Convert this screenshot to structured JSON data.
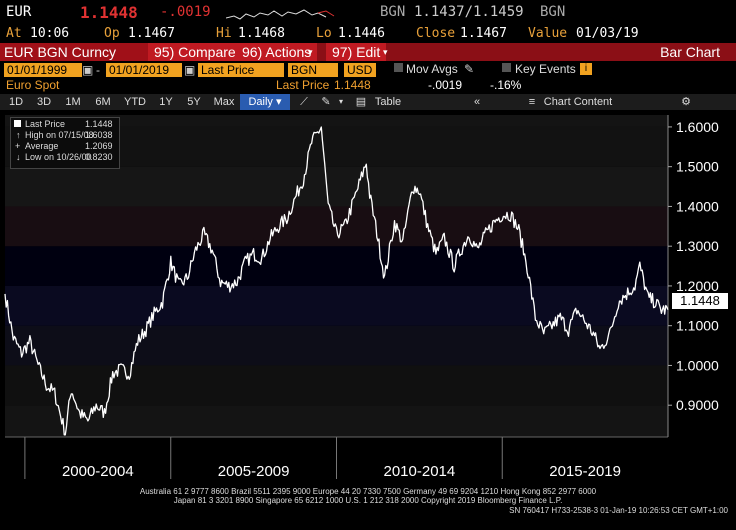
{
  "header": {
    "ticker": "EUR",
    "price": "1.1448",
    "change": "-.0019",
    "quote_ccy": "BGN",
    "bid_ask": "1.1437/1.1459",
    "quote_ccy2": "BGN",
    "at_label": "At",
    "time": "10:06",
    "op_label": "Op",
    "op": "1.1467",
    "hi_label": "Hi",
    "hi": "1.1468",
    "lo_label": "Lo",
    "lo": "1.1446",
    "close_label": "Close",
    "close": "1.1467",
    "value_label": "Value",
    "value_date": "01/03/19"
  },
  "tabs": {
    "security": "EUR BGN Curncy",
    "compare": "95) Compare",
    "actions": "96) Actions",
    "edit": "97) Edit",
    "chart_type": "Bar Chart"
  },
  "options": {
    "start_date": "01/01/1999",
    "end_date": "01/01/2019",
    "field": "Last Price",
    "currency1": "BGN",
    "currency2": "USD",
    "mov_avgs": "Mov Avgs",
    "key_events": "Key Events"
  },
  "info": {
    "name": "Euro Spot",
    "last_price_label": "Last Price",
    "last_price": "1.1448",
    "chg": "-.0019",
    "pct": "-.16%"
  },
  "buttons": [
    "1D",
    "3D",
    "1M",
    "6M",
    "YTD",
    "1Y",
    "5Y",
    "Max",
    "Daily",
    "Table",
    "Chart Content"
  ],
  "legend": {
    "series": "Last Price",
    "series_value": "1.1448",
    "high_label": "High on 07/15/08",
    "high_value": "1.6038",
    "avg_label": "Average",
    "avg_value": "1.2069",
    "low_label": "Low on 10/26/00",
    "low_value": "0.8230"
  },
  "footer": {
    "line1": "Australia 61 2 9777 8600 Brazil 5511 2395 9000 Europe 44 20 7330 7500 Germany 49 69 9204 1210 Hong Kong 852 2977 6000",
    "line2": "Japan 81 3 3201 8900        Singapore 65 6212 1000        U.S. 1 212 318 2000              Copyright 2019 Bloomberg Finance L.P.",
    "line3": "SN 760417 H733-2538-3 01-Jan-19 10:26:53 CET  GMT+1:00"
  },
  "colors": {
    "accent": "#f0a030",
    "negative": "#e03232",
    "tabbar": "#8b0f16",
    "selected": "#2a5cb0",
    "line": "#ffffff"
  },
  "chart_data": {
    "type": "line",
    "series": [
      {
        "name": "Last Price",
        "x": [
          1999.0,
          1999.25,
          1999.5,
          1999.75,
          2000.0,
          2000.25,
          2000.5,
          2000.82,
          2001.0,
          2001.25,
          2001.5,
          2001.75,
          2002.0,
          2002.25,
          2002.5,
          2002.75,
          2003.0,
          2003.25,
          2003.5,
          2003.75,
          2004.0,
          2004.25,
          2004.5,
          2004.75,
          2005.0,
          2005.25,
          2005.5,
          2005.75,
          2006.0,
          2006.25,
          2006.5,
          2006.75,
          2007.0,
          2007.25,
          2007.5,
          2007.75,
          2008.0,
          2008.25,
          2008.54,
          2008.75,
          2009.0,
          2009.25,
          2009.5,
          2009.9,
          2010.0,
          2010.25,
          2010.45,
          2010.75,
          2011.0,
          2011.3,
          2011.5,
          2011.75,
          2012.0,
          2012.25,
          2012.55,
          2012.75,
          2013.0,
          2013.25,
          2013.5,
          2013.75,
          2014.0,
          2014.25,
          2014.5,
          2014.75,
          2015.0,
          2015.25,
          2015.5,
          2015.75,
          2016.0,
          2016.25,
          2016.5,
          2016.75,
          2016.95,
          2017.25,
          2017.5,
          2017.75,
          2018.0,
          2018.15,
          2018.4,
          2018.6,
          2018.8,
          2019.0
        ],
        "values": [
          1.18,
          1.07,
          1.03,
          1.06,
          1.0,
          0.95,
          0.93,
          0.83,
          0.94,
          0.88,
          0.86,
          0.9,
          0.88,
          0.98,
          0.99,
          0.98,
          1.06,
          1.09,
          1.13,
          1.16,
          1.26,
          1.2,
          1.22,
          1.29,
          1.33,
          1.29,
          1.21,
          1.2,
          1.21,
          1.26,
          1.28,
          1.27,
          1.32,
          1.35,
          1.37,
          1.42,
          1.47,
          1.56,
          1.6,
          1.4,
          1.33,
          1.35,
          1.41,
          1.51,
          1.43,
          1.32,
          1.22,
          1.36,
          1.31,
          1.45,
          1.44,
          1.35,
          1.28,
          1.32,
          1.25,
          1.29,
          1.33,
          1.29,
          1.33,
          1.36,
          1.38,
          1.38,
          1.34,
          1.25,
          1.12,
          1.08,
          1.1,
          1.12,
          1.09,
          1.14,
          1.11,
          1.08,
          1.04,
          1.08,
          1.16,
          1.18,
          1.2,
          1.25,
          1.17,
          1.16,
          1.14,
          1.14
        ]
      }
    ],
    "x_tick_labels": [
      "2000-2004",
      "2005-2009",
      "2010-2014",
      "2015-2019"
    ],
    "xlim": [
      1999.0,
      2019.0
    ],
    "y_ticks": [
      0.9,
      1.0,
      1.1,
      1.2,
      1.3,
      1.4,
      1.5,
      1.6
    ],
    "y_tick_labels": [
      "0.9000",
      "1.0000",
      "1.1000",
      "1.2000",
      "1.3000",
      "1.4000",
      "1.5000",
      "1.6000"
    ],
    "ylim": [
      0.82,
      1.63
    ],
    "last_value_label": "1.1448",
    "grid": false,
    "legend_position": "top-left"
  }
}
